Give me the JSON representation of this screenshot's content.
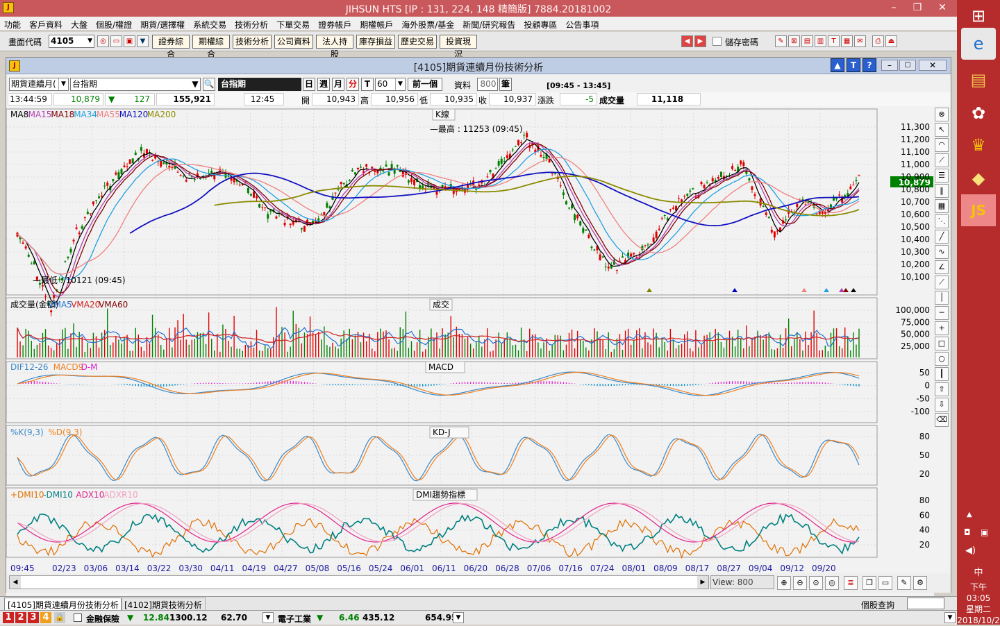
{
  "window": {
    "title": "JIHSUN HTS     [IP : 131, 224, 148 精簡版] 7884.20181002"
  },
  "menu": [
    "功能",
    "客戶資料",
    "大盤",
    "個股/權證",
    "期貨/選擇權",
    "系統交易",
    "技術分析",
    "下單交易",
    "證券帳戶",
    "期權帳戶",
    "海外股票/基金",
    "新聞/研究報告",
    "投顧專區",
    "公告事項"
  ],
  "toolbar": {
    "code_label": "畫面代碼",
    "code_value": "4105",
    "buttons": [
      "證券綜合",
      "期權綜合",
      "技術分析",
      "公司資料",
      "法人持股",
      "庫存損益",
      "歷史交易",
      "投資現況"
    ],
    "save_pwd": "儲存密碼"
  },
  "chart_window": {
    "title": "[4105]期貨連續月份技術分析"
  },
  "controls": {
    "contract": "期貨連續月(",
    "symbol": "台指期",
    "symbol_name": "台指期",
    "periods": [
      "日",
      "週",
      "月",
      "分",
      "T"
    ],
    "interval": "60",
    "prev": "前一個",
    "data_label": "資料",
    "data_count": "800",
    "unit": "筆",
    "range": "[09:45 - 13:45]"
  },
  "quote": {
    "time": "13:44:59",
    "price": "10,879",
    "change": "127",
    "amount": "155,921",
    "bar_time": "12:45",
    "open_label": "開",
    "open": "10,943",
    "high_label": "高",
    "high": "10,956",
    "low_label": "低",
    "low": "10,935",
    "close_label": "收",
    "close": "10,937",
    "chg_label": "漲跌",
    "chg": "-5",
    "vol_label": "成交量",
    "vol": "11,118"
  },
  "panels": {
    "k": {
      "label": "K線",
      "ma": [
        {
          "name": "MA8",
          "color": "#000000"
        },
        {
          "name": "MA15",
          "color": "#b040b0"
        },
        {
          "name": "MA18",
          "color": "#800000"
        },
        {
          "name": "MA34",
          "color": "#20a0e0"
        },
        {
          "name": "MA55",
          "color": "#f08080"
        },
        {
          "name": "MA120",
          "color": "#1010c0"
        },
        {
          "name": "MA200",
          "color": "#8b8b00"
        }
      ],
      "high_note": "最高 : 11253 (09:45)",
      "low_note": "最低 : 10121 (09:45)",
      "last": "10,879",
      "yticks": [
        "11,300",
        "11,200",
        "11,100",
        "11,000",
        "10,900",
        "10,800",
        "10,700",
        "10,600",
        "10,500",
        "10,400",
        "10,300",
        "10,200",
        "10,100"
      ]
    },
    "vol": {
      "label": "成交",
      "legend": [
        {
          "name": "成交量(金額)",
          "color": "#000000"
        },
        {
          "name": "VMA5",
          "color": "#2070d0"
        },
        {
          "name": "VMA20",
          "color": "#d02020"
        },
        {
          "name": "VMA60",
          "color": "#800000"
        }
      ],
      "yticks": [
        "100,000",
        "75,000",
        "50,000",
        "25,000"
      ]
    },
    "macd": {
      "label": "MACD",
      "legend": [
        {
          "name": "DIF12-26",
          "color": "#3a88c8"
        },
        {
          "name": "MACD9",
          "color": "#f08020"
        },
        {
          "name": "D-M",
          "color": "#e020d0"
        }
      ],
      "yticks": [
        "50",
        "0",
        "-50",
        "-100"
      ]
    },
    "kd": {
      "label": "KD-J",
      "legend": [
        {
          "name": "%K(9,3)",
          "color": "#3a88c8"
        },
        {
          "name": "%D(9,3)",
          "color": "#f08020"
        }
      ],
      "yticks": [
        "80",
        "50",
        "20"
      ]
    },
    "dmi": {
      "label": "DMI趨勢指標",
      "legend": [
        {
          "name": "+DMI10",
          "color": "#e07000"
        },
        {
          "name": "-DMI10",
          "color": "#008080"
        },
        {
          "name": "ADX10",
          "color": "#e0208a"
        },
        {
          "name": "ADXR10",
          "color": "#f0a0c0"
        }
      ],
      "yticks": [
        "80",
        "60",
        "40",
        "20"
      ]
    }
  },
  "xaxis": [
    "09:45",
    "02/23",
    "03/06",
    "03/14",
    "03/22",
    "03/30",
    "04/11",
    "04/19",
    "04/27",
    "05/08",
    "05/16",
    "05/24",
    "06/01",
    "06/11",
    "06/20",
    "06/28",
    "07/06",
    "07/16",
    "07/24",
    "08/01",
    "08/09",
    "08/17",
    "08/27",
    "09/04",
    "09/12",
    "09/20"
  ],
  "view": {
    "label": "View:",
    "value": "800"
  },
  "tabs": [
    "[4105]期貨連續月份技術分析",
    "[4102]期貨技術分析"
  ],
  "search_label": "個股查詢",
  "status": {
    "n1": "1",
    "n2": "2",
    "n3": "3",
    "n4": "4",
    "sec1": "金融保險",
    "s1a": "12.84",
    "s1b": "1300.12",
    "s1c": "62.70",
    "sec2": "電子工業",
    "s2a": "6.46",
    "s2b": "435.12",
    "s2c": "654.95"
  },
  "clock": {
    "time": "下午 03:05",
    "day": "星期二",
    "date": "2018/10/2"
  },
  "ime": "中"
}
